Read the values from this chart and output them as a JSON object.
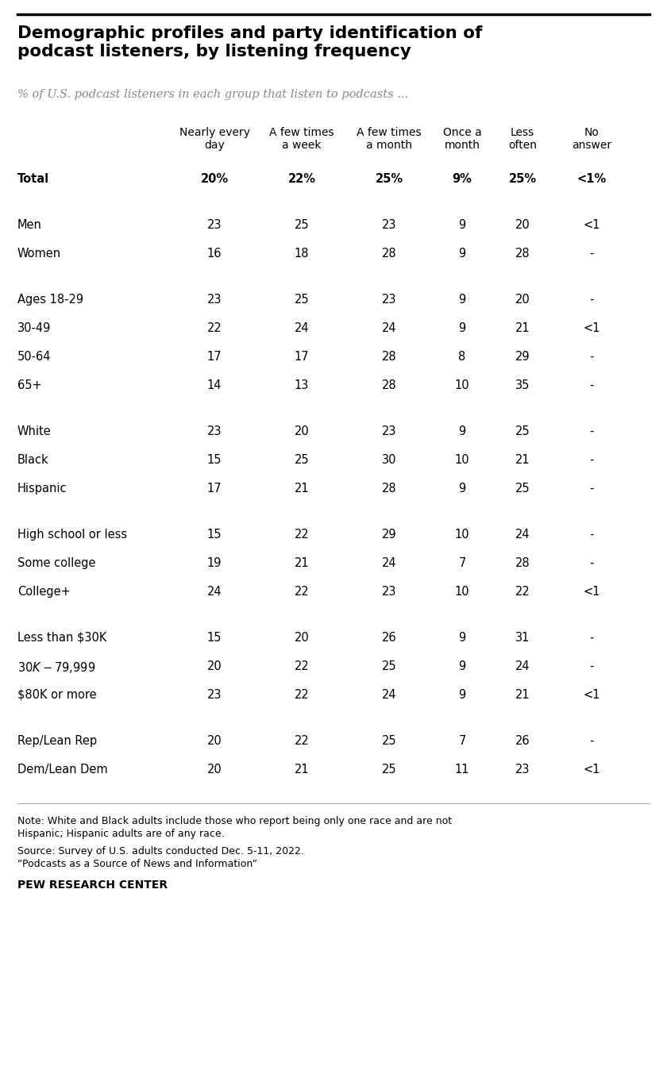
{
  "title": "Demographic profiles and party identification of\npodcast listeners, by listening frequency",
  "subtitle": "% of U.S. podcast listeners in each group that listen to podcasts ...",
  "col_headers": [
    "Nearly every\nday",
    "A few times\na week",
    "A few times\na month",
    "Once a\nmonth",
    "Less\noften",
    "No\nanswer"
  ],
  "rows": [
    {
      "label": "Total",
      "values": [
        "20%",
        "22%",
        "25%",
        "9%",
        "25%",
        "<1%"
      ],
      "bold": true,
      "separator_before": false
    },
    {
      "label": "_gap_",
      "values": [],
      "bold": false,
      "separator_before": false
    },
    {
      "label": "Men",
      "values": [
        "23",
        "25",
        "23",
        "9",
        "20",
        "<1"
      ],
      "bold": false,
      "separator_before": false
    },
    {
      "label": "Women",
      "values": [
        "16",
        "18",
        "28",
        "9",
        "28",
        "-"
      ],
      "bold": false,
      "separator_before": false
    },
    {
      "label": "_gap_",
      "values": [],
      "bold": false,
      "separator_before": false
    },
    {
      "label": "Ages 18-29",
      "values": [
        "23",
        "25",
        "23",
        "9",
        "20",
        "-"
      ],
      "bold": false,
      "separator_before": false
    },
    {
      "label": "30-49",
      "values": [
        "22",
        "24",
        "24",
        "9",
        "21",
        "<1"
      ],
      "bold": false,
      "separator_before": false
    },
    {
      "label": "50-64",
      "values": [
        "17",
        "17",
        "28",
        "8",
        "29",
        "-"
      ],
      "bold": false,
      "separator_before": false
    },
    {
      "label": "65+",
      "values": [
        "14",
        "13",
        "28",
        "10",
        "35",
        "-"
      ],
      "bold": false,
      "separator_before": false
    },
    {
      "label": "_gap_",
      "values": [],
      "bold": false,
      "separator_before": false
    },
    {
      "label": "White",
      "values": [
        "23",
        "20",
        "23",
        "9",
        "25",
        "-"
      ],
      "bold": false,
      "separator_before": false
    },
    {
      "label": "Black",
      "values": [
        "15",
        "25",
        "30",
        "10",
        "21",
        "-"
      ],
      "bold": false,
      "separator_before": false
    },
    {
      "label": "Hispanic",
      "values": [
        "17",
        "21",
        "28",
        "9",
        "25",
        "-"
      ],
      "bold": false,
      "separator_before": false
    },
    {
      "label": "_gap_",
      "values": [],
      "bold": false,
      "separator_before": false
    },
    {
      "label": "High school or less",
      "values": [
        "15",
        "22",
        "29",
        "10",
        "24",
        "-"
      ],
      "bold": false,
      "separator_before": false
    },
    {
      "label": "Some college",
      "values": [
        "19",
        "21",
        "24",
        "7",
        "28",
        "-"
      ],
      "bold": false,
      "separator_before": false
    },
    {
      "label": "College+",
      "values": [
        "24",
        "22",
        "23",
        "10",
        "22",
        "<1"
      ],
      "bold": false,
      "separator_before": false
    },
    {
      "label": "_gap_",
      "values": [],
      "bold": false,
      "separator_before": false
    },
    {
      "label": "Less than $30K",
      "values": [
        "15",
        "20",
        "26",
        "9",
        "31",
        "-"
      ],
      "bold": false,
      "separator_before": false
    },
    {
      "label": "$30K-$79,999",
      "values": [
        "20",
        "22",
        "25",
        "9",
        "24",
        "-"
      ],
      "bold": false,
      "separator_before": false
    },
    {
      "label": "$80K or more",
      "values": [
        "23",
        "22",
        "24",
        "9",
        "21",
        "<1"
      ],
      "bold": false,
      "separator_before": false
    },
    {
      "label": "_gap_",
      "values": [],
      "bold": false,
      "separator_before": false
    },
    {
      "label": "Rep/Lean Rep",
      "values": [
        "20",
        "22",
        "25",
        "7",
        "26",
        "-"
      ],
      "bold": false,
      "separator_before": false
    },
    {
      "label": "Dem/Lean Dem",
      "values": [
        "20",
        "21",
        "25",
        "11",
        "23",
        "<1"
      ],
      "bold": false,
      "separator_before": false
    }
  ],
  "note_line1": "Note: White and Black adults include those who report being only one race and are not",
  "note_line2": "Hispanic; Hispanic adults are of any race.",
  "source_line1": "Source: Survey of U.S. adults conducted Dec. 5-11, 2022.",
  "source_line2": "“Podcasts as a Source of News and Information”",
  "footer": "PEW RESEARCH CENTER",
  "title_color": "#000000",
  "subtitle_color": "#888888",
  "text_color": "#000000",
  "background_color": "#ffffff",
  "top_line_color": "#000000",
  "bottom_line_color": "#aaaaaa",
  "title_fontsize": 15.5,
  "subtitle_fontsize": 10.5,
  "header_fontsize": 10,
  "data_fontsize": 10.5,
  "note_fontsize": 9,
  "footer_fontsize": 10
}
